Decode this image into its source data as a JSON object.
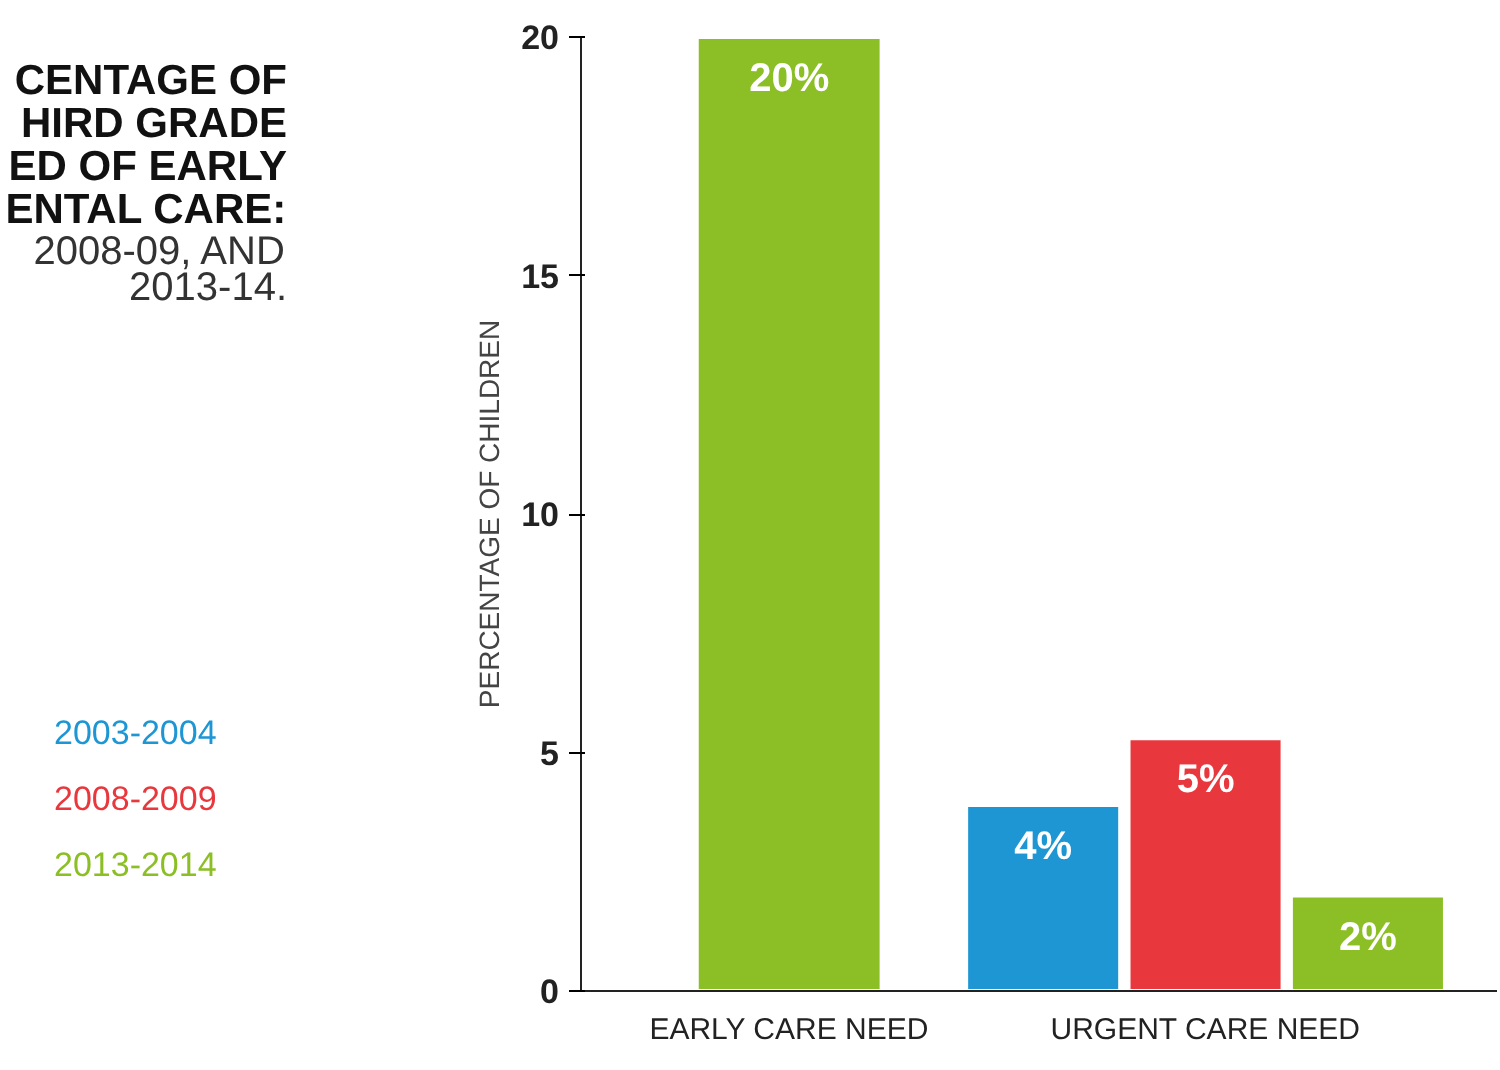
{
  "chart_data": {
    "type": "bar",
    "title": "CENTAGE OF\nHIRD GRADE\nED OF EARLY\nENTAL CARE:",
    "subtitle": "2008-09, AND\n2013-14.",
    "ylabel": "PERCENTAGE OF CHILDREN",
    "categories": [
      "EARLY CARE NEED",
      "URGENT CARE NEED"
    ],
    "series": [
      {
        "name": "2003-2004",
        "color": "#1e96d4",
        "values": [
          null,
          3.9
        ],
        "value_labels": [
          null,
          "4%"
        ]
      },
      {
        "name": "2008-2009",
        "color": "#e8383d",
        "values": [
          null,
          5.3
        ],
        "value_labels": [
          null,
          "5%"
        ]
      },
      {
        "name": "2013-2014",
        "color": "#8cbf26",
        "values": [
          20,
          2.0
        ],
        "value_labels": [
          "20%",
          "2%"
        ]
      }
    ],
    "ylim": [
      0,
      20
    ],
    "yticks": [
      0,
      5,
      10,
      15,
      20
    ],
    "grid": false,
    "legend": "left"
  }
}
